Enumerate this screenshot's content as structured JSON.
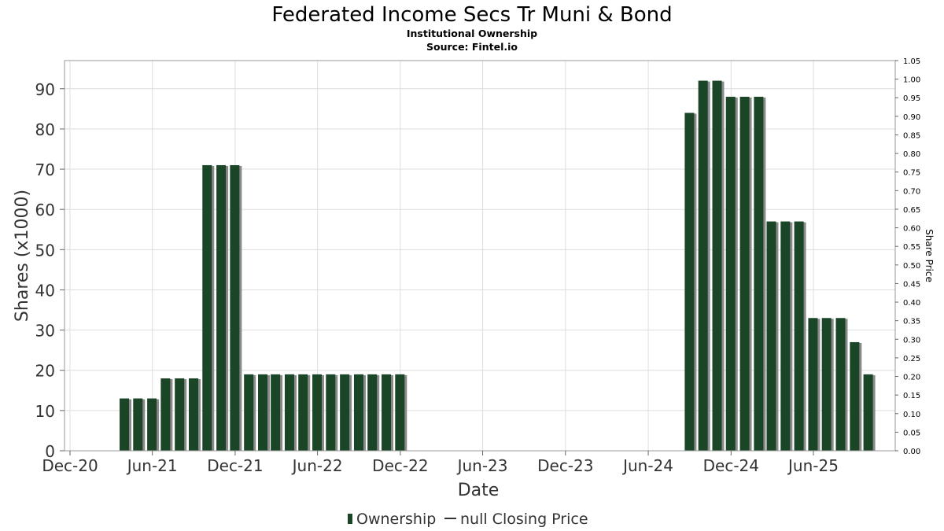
{
  "chart_data": {
    "type": "bar",
    "title": "Federated Income Secs Tr Muni & Bond",
    "subtitle": "Institutional Ownership",
    "source": "Source: Fintel.io",
    "xlabel": "Date",
    "ylabel": "Shares (x1000)",
    "y2label": "Share Price",
    "x_ticks": [
      "Dec-20",
      "Jun-21",
      "Dec-21",
      "Jun-22",
      "Dec-22",
      "Jun-23",
      "Dec-23",
      "Jun-24",
      "Dec-24",
      "Jun-25"
    ],
    "y_ticks": [
      "0",
      "10",
      "20",
      "30",
      "40",
      "50",
      "60",
      "70",
      "80",
      "90"
    ],
    "y2_ticks": [
      "0.00",
      "0.05",
      "0.10",
      "0.15",
      "0.20",
      "0.25",
      "0.30",
      "0.35",
      "0.40",
      "0.45",
      "0.50",
      "0.55",
      "0.60",
      "0.65",
      "0.70",
      "0.75",
      "0.80",
      "0.85",
      "0.90",
      "0.95",
      "1.00",
      "1.05"
    ],
    "ylim": [
      0,
      97
    ],
    "y2lim": [
      0,
      1.05
    ],
    "grid": true,
    "legend": "bottom",
    "legend_items": [
      "Ownership",
      "null Closing Price"
    ],
    "bar_color": "#1b4527",
    "shadow_color": "#8a8a8a",
    "series": [
      {
        "name": "Ownership",
        "values": [
          {
            "date": "2021-03-31",
            "value": 13
          },
          {
            "date": "2021-04-30",
            "value": 13
          },
          {
            "date": "2021-05-31",
            "value": 13
          },
          {
            "date": "2021-06-30",
            "value": 18
          },
          {
            "date": "2021-07-31",
            "value": 18
          },
          {
            "date": "2021-08-31",
            "value": 18
          },
          {
            "date": "2021-09-30",
            "value": 71
          },
          {
            "date": "2021-10-31",
            "value": 71
          },
          {
            "date": "2021-11-30",
            "value": 71
          },
          {
            "date": "2021-12-31",
            "value": 19
          },
          {
            "date": "2022-01-31",
            "value": 19
          },
          {
            "date": "2022-02-28",
            "value": 19
          },
          {
            "date": "2022-03-31",
            "value": 19
          },
          {
            "date": "2022-04-30",
            "value": 19
          },
          {
            "date": "2022-05-31",
            "value": 19
          },
          {
            "date": "2022-06-30",
            "value": 19
          },
          {
            "date": "2022-07-31",
            "value": 19
          },
          {
            "date": "2022-08-31",
            "value": 19
          },
          {
            "date": "2022-09-30",
            "value": 19
          },
          {
            "date": "2022-10-31",
            "value": 19
          },
          {
            "date": "2022-11-30",
            "value": 19
          },
          {
            "date": "2024-08-31",
            "value": 84
          },
          {
            "date": "2024-09-30",
            "value": 92
          },
          {
            "date": "2024-10-31",
            "value": 92
          },
          {
            "date": "2024-11-30",
            "value": 88
          },
          {
            "date": "2024-12-31",
            "value": 88
          },
          {
            "date": "2025-01-31",
            "value": 88
          },
          {
            "date": "2025-02-28",
            "value": 57
          },
          {
            "date": "2025-03-31",
            "value": 57
          },
          {
            "date": "2025-04-30",
            "value": 57
          },
          {
            "date": "2025-05-31",
            "value": 33
          },
          {
            "date": "2025-06-30",
            "value": 33
          },
          {
            "date": "2025-07-31",
            "value": 33
          },
          {
            "date": "2025-08-31",
            "value": 27
          },
          {
            "date": "2025-09-30",
            "value": 19
          }
        ]
      }
    ]
  }
}
